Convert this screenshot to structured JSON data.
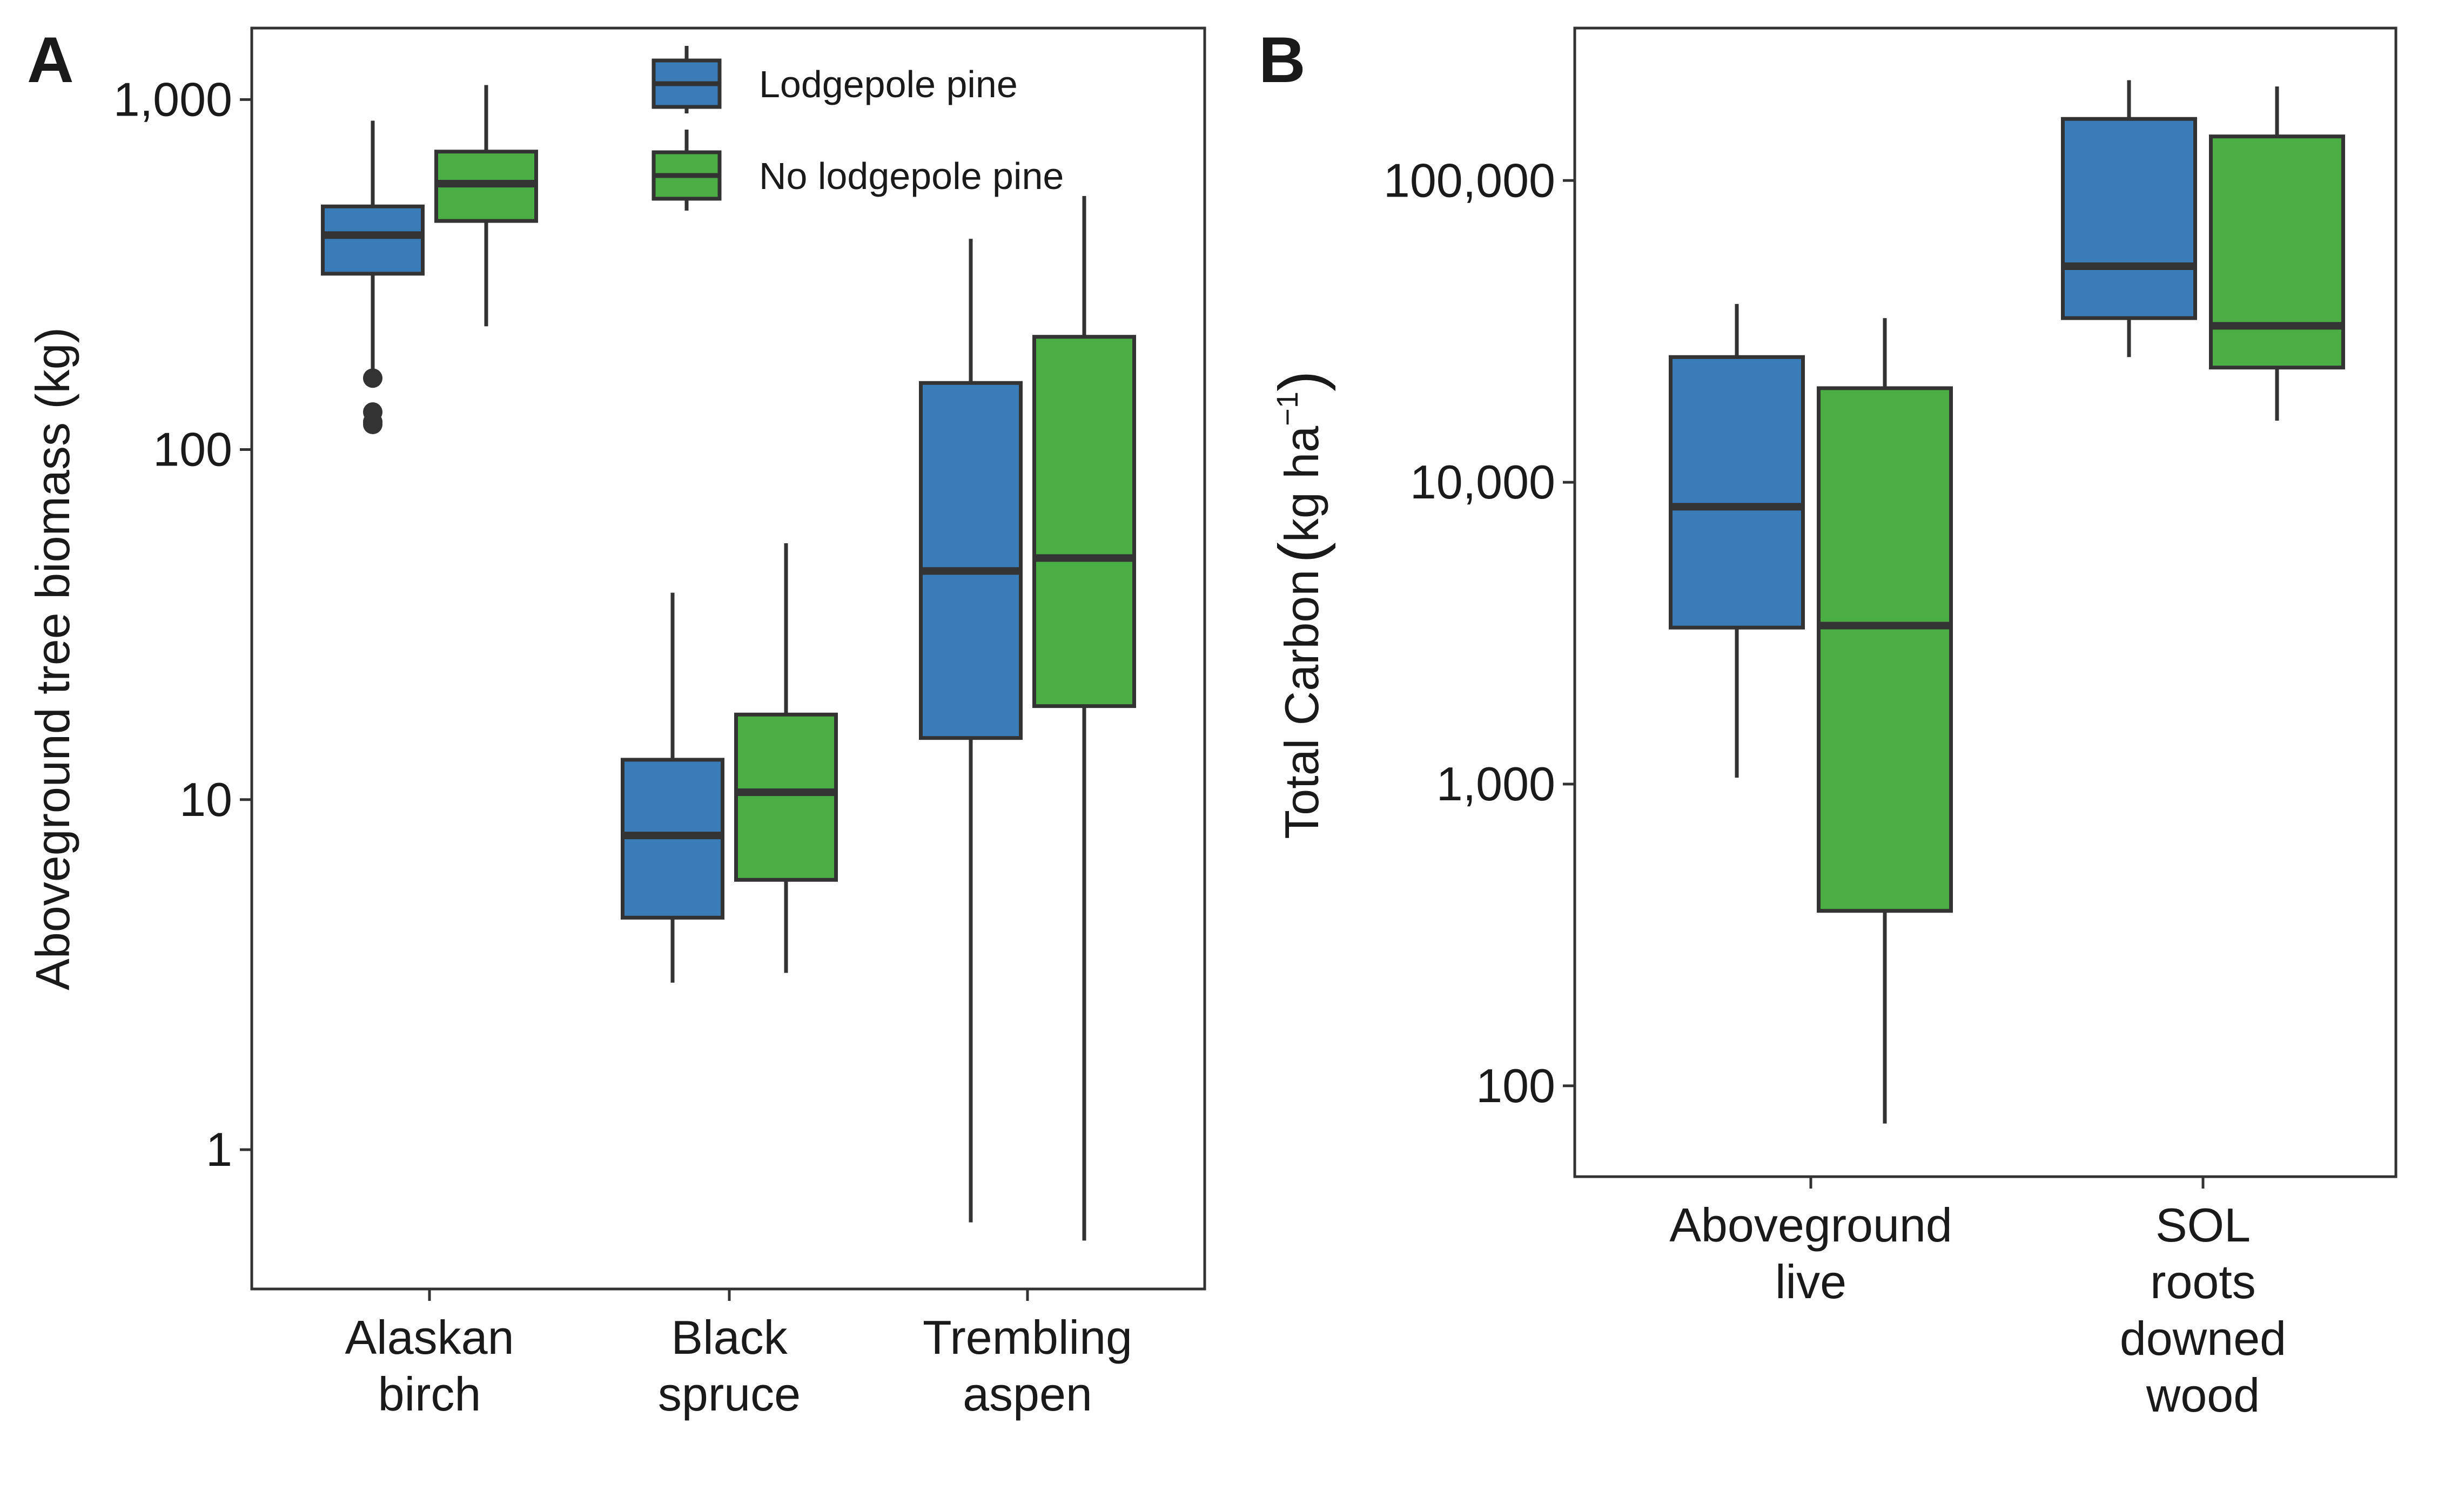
{
  "figure": {
    "legend": {
      "items": [
        {
          "label": "Lodgepole pine",
          "color": "#3A7CB8"
        },
        {
          "label": "No lodgepole pine",
          "color": "#4BAE45"
        }
      ],
      "placement": "top-right of panel A"
    }
  },
  "chart_data": [
    {
      "panel": "A",
      "type": "boxplot",
      "scale": "log10",
      "ylabel": "Aboveground tree biomass (kg)",
      "ylim": [
        0.4,
        1600
      ],
      "yticks": [
        1,
        10,
        100,
        1000
      ],
      "ytick_labels": [
        "1",
        "10",
        "100",
        "1,000"
      ],
      "categories": [
        {
          "line1": "Alaskan",
          "line2": "birch"
        },
        {
          "line1": "Black",
          "line2": "spruce"
        },
        {
          "line1": "Trembling",
          "line2": "aspen"
        }
      ],
      "series": [
        {
          "name": "Lodgepole pine",
          "color": "#3A7CB8",
          "boxes": [
            {
              "whisker_low": 160,
              "q1": 318,
              "median": 410,
              "q3": 495,
              "whisker_high": 870,
              "outliers": [
                160,
                128,
                120,
                118
              ]
            },
            {
              "whisker_low": 3.0,
              "q1": 4.6,
              "median": 7.9,
              "q3": 13,
              "whisker_high": 39,
              "outliers": []
            },
            {
              "whisker_low": 0.62,
              "q1": 15,
              "median": 45,
              "q3": 155,
              "whisker_high": 400,
              "outliers": []
            }
          ]
        },
        {
          "name": "No lodgepole pine",
          "color": "#4BAE45",
          "boxes": [
            {
              "whisker_low": 225,
              "q1": 450,
              "median": 575,
              "q3": 710,
              "whisker_high": 1100,
              "outliers": []
            },
            {
              "whisker_low": 3.2,
              "q1": 5.9,
              "median": 10.5,
              "q3": 17.5,
              "whisker_high": 54,
              "outliers": []
            },
            {
              "whisker_low": 0.55,
              "q1": 18.5,
              "median": 49,
              "q3": 210,
              "whisker_high": 530,
              "outliers": []
            }
          ]
        }
      ],
      "grid": false
    },
    {
      "panel": "B",
      "type": "boxplot",
      "scale": "log10",
      "ylabel_main": "Total Carbon",
      "ylabel_unit": "kg ha",
      "ylabel_sup": "−1",
      "ylim": [
        50,
        320000
      ],
      "yticks": [
        100,
        1000,
        10000,
        100000
      ],
      "ytick_labels": [
        "100",
        "1,000",
        "10,000",
        "100,000"
      ],
      "categories": [
        {
          "lines": [
            "Aboveground",
            "live"
          ]
        },
        {
          "lines": [
            "SOL",
            "roots",
            "downed",
            "wood"
          ]
        }
      ],
      "series": [
        {
          "name": "Lodgepole pine",
          "color": "#3A7CB8",
          "boxes": [
            {
              "whisker_low": 1050,
              "q1": 3300,
              "median": 8300,
              "q3": 26000,
              "whisker_high": 39000,
              "outliers": []
            },
            {
              "whisker_low": 26000,
              "q1": 35000,
              "median": 52000,
              "q3": 160000,
              "whisker_high": 215000,
              "outliers": []
            }
          ]
        },
        {
          "name": "No lodgepole pine",
          "color": "#4BAE45",
          "boxes": [
            {
              "whisker_low": 75,
              "q1": 380,
              "median": 3350,
              "q3": 20500,
              "whisker_high": 35000,
              "outliers": []
            },
            {
              "whisker_low": 16000,
              "q1": 24000,
              "median": 33000,
              "q3": 140000,
              "whisker_high": 205000,
              "outliers": []
            }
          ]
        }
      ],
      "grid": false
    }
  ]
}
